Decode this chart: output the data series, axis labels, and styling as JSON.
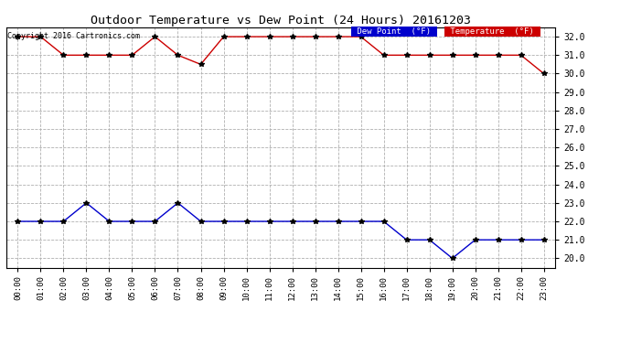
{
  "title": "Outdoor Temperature vs Dew Point (24 Hours) 20161203",
  "copyright": "Copyright 2016 Cartronics.com",
  "background_color": "#ffffff",
  "plot_bg_color": "#ffffff",
  "grid_color": "#b0b0b0",
  "ylim": [
    19.5,
    32.5
  ],
  "yticks": [
    20.0,
    21.0,
    22.0,
    23.0,
    24.0,
    25.0,
    26.0,
    27.0,
    28.0,
    29.0,
    30.0,
    31.0,
    32.0
  ],
  "hours": [
    "00:00",
    "01:00",
    "02:00",
    "03:00",
    "04:00",
    "05:00",
    "06:00",
    "07:00",
    "08:00",
    "09:00",
    "10:00",
    "11:00",
    "12:00",
    "13:00",
    "14:00",
    "15:00",
    "16:00",
    "17:00",
    "18:00",
    "19:00",
    "20:00",
    "21:00",
    "22:00",
    "23:00"
  ],
  "temperature": [
    32.0,
    32.0,
    31.0,
    31.0,
    31.0,
    31.0,
    32.0,
    31.0,
    30.5,
    32.0,
    32.0,
    32.0,
    32.0,
    32.0,
    32.0,
    32.0,
    31.0,
    31.0,
    31.0,
    31.0,
    31.0,
    31.0,
    31.0,
    30.0
  ],
  "dew_point": [
    22.0,
    22.0,
    22.0,
    23.0,
    22.0,
    22.0,
    22.0,
    23.0,
    22.0,
    22.0,
    22.0,
    22.0,
    22.0,
    22.0,
    22.0,
    22.0,
    22.0,
    21.0,
    21.0,
    20.0,
    21.0,
    21.0,
    21.0,
    21.0
  ],
  "temp_color": "#cc0000",
  "dew_color": "#0000cc",
  "legend_dew_bg": "#0000cc",
  "legend_temp_bg": "#cc0000",
  "legend_text_color": "#ffffff",
  "marker": "*",
  "marker_color": "#000000",
  "marker_size": 4
}
